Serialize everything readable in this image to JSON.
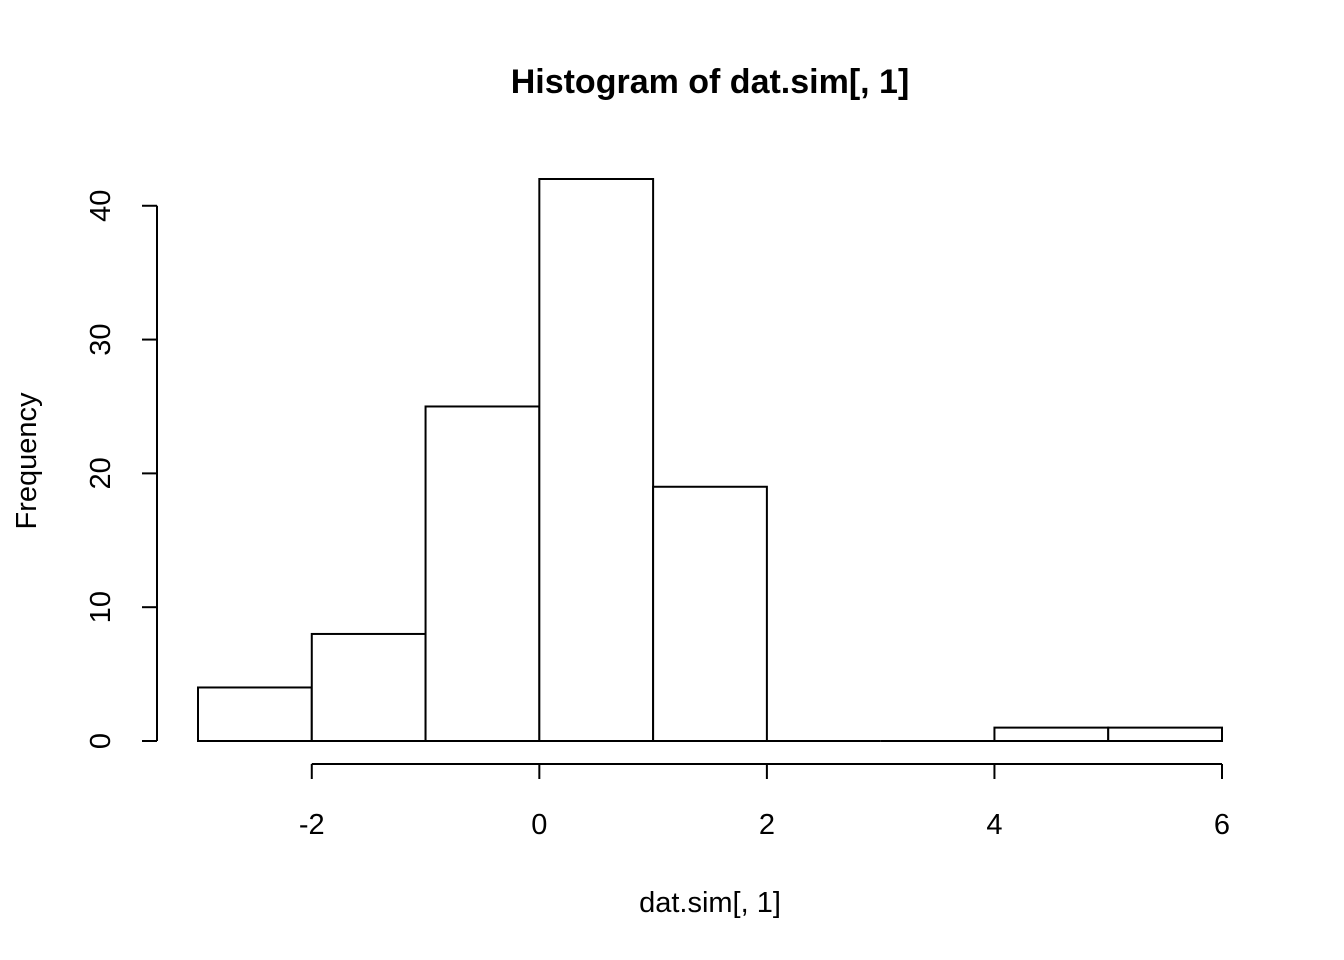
{
  "chart_data": {
    "type": "bar",
    "title": "Histogram of dat.sim[, 1]",
    "xlabel": "dat.sim[, 1]",
    "ylabel": "Frequency",
    "bins": [
      {
        "x0": -3,
        "x1": -2,
        "count": 4
      },
      {
        "x0": -2,
        "x1": -1,
        "count": 8
      },
      {
        "x0": -1,
        "x1": 0,
        "count": 25
      },
      {
        "x0": 0,
        "x1": 1,
        "count": 42
      },
      {
        "x0": 1,
        "x1": 2,
        "count": 19
      },
      {
        "x0": 2,
        "x1": 3,
        "count": 0
      },
      {
        "x0": 3,
        "x1": 4,
        "count": 0
      },
      {
        "x0": 4,
        "x1": 5,
        "count": 1
      },
      {
        "x0": 5,
        "x1": 6,
        "count": 1
      }
    ],
    "xticks": [
      -2,
      0,
      2,
      4,
      6
    ],
    "yticks": [
      0,
      10,
      20,
      30,
      40
    ],
    "xlim": [
      -3,
      6
    ],
    "ylim": [
      0,
      42
    ],
    "grid": false,
    "bar_fill": "#ffffff",
    "bar_stroke": "#000000"
  }
}
